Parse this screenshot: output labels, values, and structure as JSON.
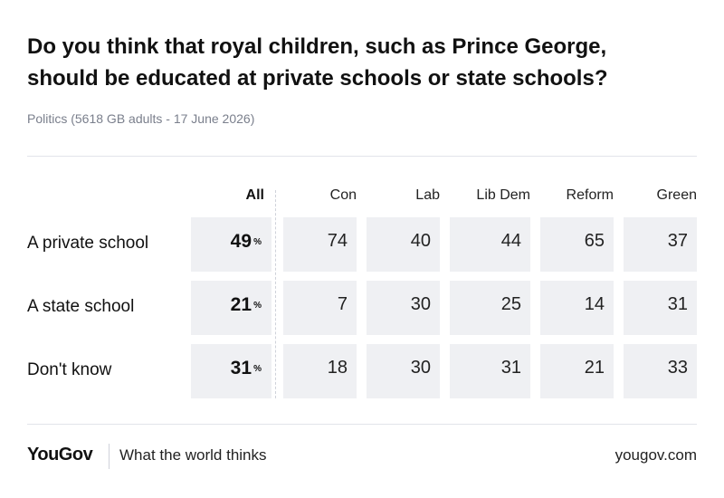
{
  "header": {
    "title_lines": [
      "Do you think that royal children, such as Prince George,",
      "should be educated at private schools or state schools?"
    ],
    "subtitle": "Politics (5618 GB adults - 17 June 2026)"
  },
  "chart_data": {
    "type": "table",
    "title": "Do you think that royal children, such as Prince George, should be educated at private schools or state schools?",
    "subtitle": "Politics (5618 GB adults - 17 June 2026)",
    "columns": [
      "All",
      "Con",
      "Lab",
      "Lib Dem",
      "Reform",
      "Green"
    ],
    "unit": "%",
    "rows": [
      {
        "label": "A private school",
        "all": 49,
        "values": [
          74,
          40,
          44,
          65,
          37
        ]
      },
      {
        "label": "A state school",
        "all": 21,
        "values": [
          7,
          30,
          25,
          14,
          31
        ]
      },
      {
        "label": "Don't know",
        "all": 31,
        "values": [
          18,
          30,
          31,
          21,
          33
        ]
      }
    ]
  },
  "footer": {
    "brand": "YouGov",
    "tagline": "What the world thinks",
    "url": "yougov.com"
  }
}
